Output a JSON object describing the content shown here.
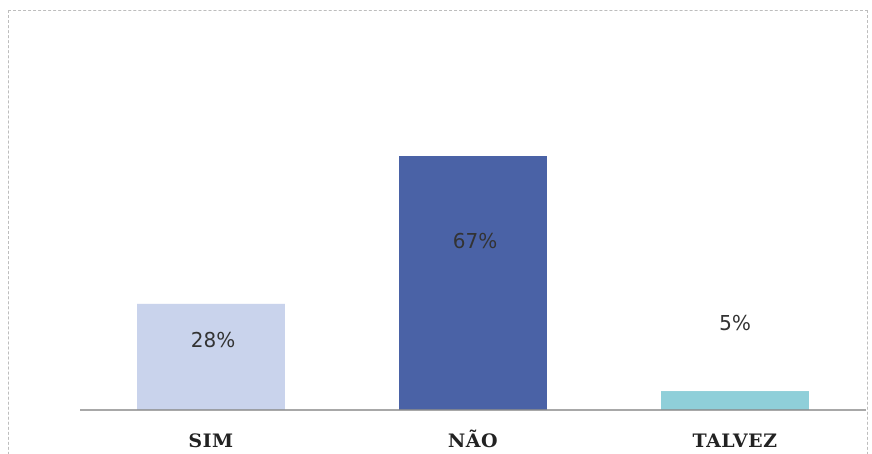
{
  "chart_data": {
    "type": "bar",
    "categories": [
      "SIM",
      "NÃO",
      "TALVEZ"
    ],
    "values": [
      28,
      67,
      5
    ],
    "data_labels": [
      "28%",
      "67%",
      "5%"
    ],
    "value_unit": "%",
    "colors": [
      "#c9d3ec",
      "#4a62a6",
      "#8fcfd9"
    ],
    "ylim": [
      0,
      100
    ],
    "grid": false,
    "legend": "none"
  }
}
